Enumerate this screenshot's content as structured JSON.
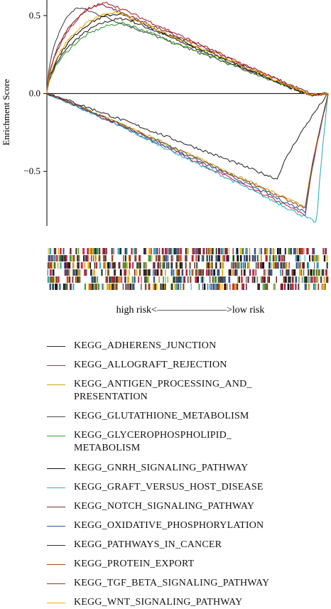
{
  "chart_data": {
    "type": "line",
    "ylabel": "Enrichment Score",
    "yticks": [
      "0.5",
      "0.0",
      "−0.5"
    ],
    "ylim": [
      -0.85,
      0.6
    ],
    "xlim": [
      0,
      1
    ],
    "xlabel": "high risk<––––––––––––––>low risk",
    "series": [
      {
        "name": "KEGG_ADHERENS_JUNCTION",
        "color": "#2a2a2a",
        "direction": "up",
        "peak": 0.48,
        "peak_x": 0.28,
        "end_x": 0.93
      },
      {
        "name": "KEGG_ALLOGRAFT_REJECTION",
        "color": "#d6234a",
        "direction": "down",
        "peak": -0.78,
        "peak_x": 0.92,
        "end_x": 0.99
      },
      {
        "name": "KEGG_ANTIGEN_PROCESSING_AND_\nPRESENTATION",
        "color": "#d4a514",
        "direction": "down",
        "peak": -0.73,
        "peak_x": 0.92,
        "end_x": 0.99
      },
      {
        "name": "KEGG_GLUTATHIONE_METABOLISM",
        "color": "#4a4a4a",
        "direction": "up",
        "peak": 0.55,
        "peak_x": 0.12,
        "end_x": 0.94
      },
      {
        "name": "KEGG_GLYCEROPHOSPHOLIPID_\nMETABOLISM",
        "color": "#3a9a3a",
        "direction": "up",
        "peak": 0.45,
        "peak_x": 0.28,
        "end_x": 0.94
      },
      {
        "name": "KEGG_GNRH_SIGNALING_PATHWAY",
        "color": "#111111",
        "direction": "up",
        "peak": 0.51,
        "peak_x": 0.26,
        "end_x": 0.93
      },
      {
        "name": "KEGG_GRAFT_VERSUS_HOST_DISEASE",
        "color": "#2ab0c8",
        "direction": "down",
        "peak": -0.83,
        "peak_x": 0.96,
        "end_x": 0.995
      },
      {
        "name": "KEGG_NOTCH_SIGNALING_PATHWAY",
        "color": "#7a2a3a",
        "direction": "up",
        "peak": 0.57,
        "peak_x": 0.2,
        "end_x": 0.95
      },
      {
        "name": "KEGG_OXIDATIVE_PHOSPHORYLATION",
        "color": "#2c5aa0",
        "direction": "down",
        "peak": -0.76,
        "peak_x": 0.92,
        "end_x": 0.99
      },
      {
        "name": "KEGG_PATHWAYS_IN_CANCER",
        "color": "#303030",
        "direction": "down",
        "peak": -0.55,
        "peak_x": 0.82,
        "end_x": 0.99
      },
      {
        "name": "KEGG_PROTEIN_EXPORT",
        "color": "#8a4a2a",
        "direction": "down",
        "peak": -0.74,
        "peak_x": 0.92,
        "end_x": 0.99
      },
      {
        "name": "KEGG_TGF_BETA_SIGNALING_PATHWAY",
        "color": "#b8202a",
        "direction": "up",
        "peak": 0.58,
        "peak_x": 0.22,
        "end_x": 0.94
      },
      {
        "name": "KEGG_WNT_SIGNALING_PATHWAY",
        "color": "#f0a800",
        "direction": "up",
        "peak": 0.52,
        "peak_x": 0.25,
        "end_x": 0.94
      }
    ],
    "legend_position": "bottom",
    "grid": false
  }
}
